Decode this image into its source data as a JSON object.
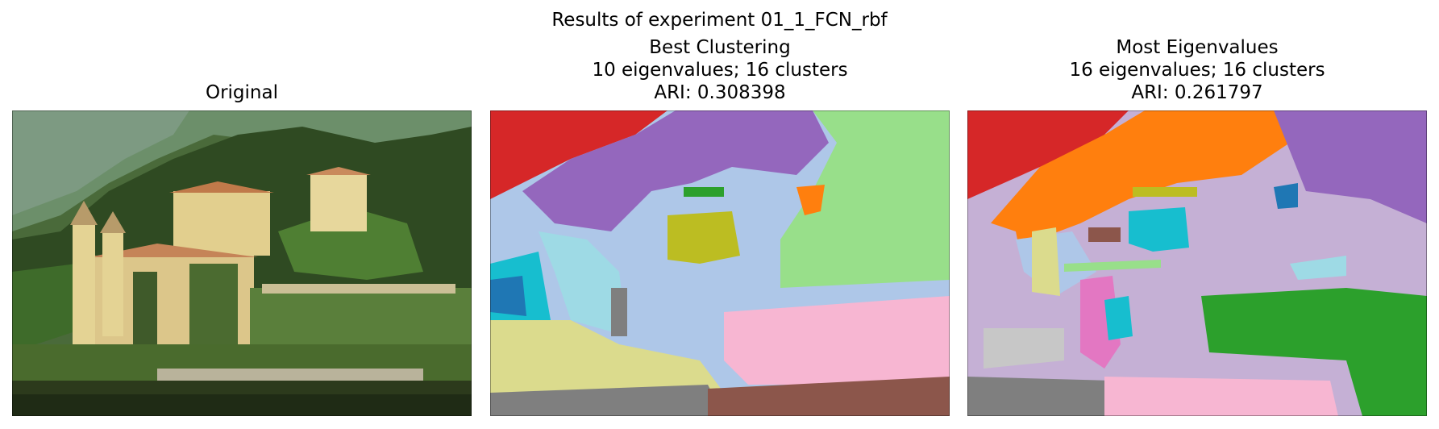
{
  "figure": {
    "suptitle": "Results of experiment 01_1_FCN_rbf"
  },
  "panels": [
    {
      "title_lines": [
        "Original"
      ]
    },
    {
      "title_lines": [
        "Best Clustering",
        "10 eigenvalues; 16 clusters",
        "ARI: 0.308398"
      ]
    },
    {
      "title_lines": [
        "Most Eigenvalues",
        "16 eigenvalues; 16 clusters",
        "ARI: 0.261797"
      ]
    }
  ],
  "colors": {
    "tab_red": "#d62728",
    "tab_purple": "#9467bd",
    "tab_lightgreen": "#98df8a",
    "tab_lightblue": "#aec7e8",
    "tab_cyan": "#17becf",
    "tab_blue": "#1f77b4",
    "tab_lightcyan": "#9edae5",
    "tab_olive": "#bcbd22",
    "tab_khaki": "#dbdb8d",
    "tab_gray": "#7f7f7f",
    "tab_pink": "#f7b6d2",
    "tab_brown": "#8c564b",
    "tab_orange": "#ff7f0e",
    "tab_lilac": "#c5b0d5",
    "tab_green": "#2ca02c",
    "tab_magenta": "#e377c2",
    "tab_lightgray": "#c7c7c7"
  }
}
